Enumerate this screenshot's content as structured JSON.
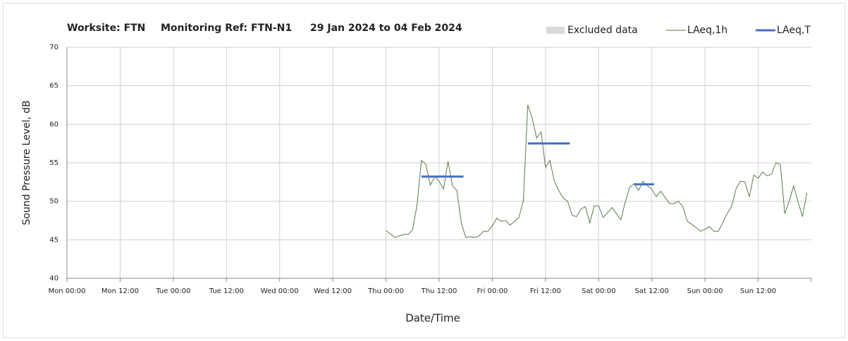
{
  "chart_data": {
    "type": "line",
    "title": [
      "Worksite: FTN",
      "Monitoring Ref: FTN-N1",
      "29 Jan 2024 to 04 Feb 2024"
    ],
    "xlabel": "Date/Time",
    "ylabel": "Sound Pressure Level, dB",
    "xlim": [
      0,
      168
    ],
    "ylim": [
      40,
      70
    ],
    "xticks": [
      {
        "value": 0,
        "label": "Mon 00:00"
      },
      {
        "value": 12,
        "label": "Mon 12:00"
      },
      {
        "value": 24,
        "label": "Tue 00:00"
      },
      {
        "value": 36,
        "label": "Tue 12:00"
      },
      {
        "value": 48,
        "label": "Wed 00:00"
      },
      {
        "value": 60,
        "label": "Wed 12:00"
      },
      {
        "value": 72,
        "label": "Thu 00:00"
      },
      {
        "value": 84,
        "label": "Thu 12:00"
      },
      {
        "value": 96,
        "label": "Fri 00:00"
      },
      {
        "value": 108,
        "label": "Fri 12:00"
      },
      {
        "value": 120,
        "label": "Sat 00:00"
      },
      {
        "value": 132,
        "label": "Sat 12:00"
      },
      {
        "value": 144,
        "label": "Sun 00:00"
      },
      {
        "value": 156,
        "label": "Sun 12:00"
      }
    ],
    "yticks": [
      40,
      45,
      50,
      55,
      60,
      65,
      70
    ],
    "grid": true,
    "legend": "top-right",
    "series": [
      {
        "name": "Excluded data",
        "color": "#d9d9d9",
        "x": [],
        "values": []
      },
      {
        "name": "LAeq,1h",
        "color": "#5a7a4a",
        "x": [
          72,
          74,
          76,
          77,
          78,
          79,
          80,
          81,
          82,
          83,
          84,
          85,
          86,
          87,
          88,
          89,
          90,
          91,
          92,
          93,
          94,
          95,
          96,
          97,
          98,
          99,
          100,
          101,
          102,
          103,
          104,
          105,
          106,
          107,
          108,
          109,
          110,
          111,
          112,
          113,
          114,
          115,
          116,
          117,
          118,
          119,
          120,
          121,
          122,
          123,
          124,
          125,
          126,
          127,
          128,
          129,
          130,
          131,
          132,
          133,
          134,
          135,
          136,
          137,
          138,
          139,
          140,
          141,
          142,
          143,
          144,
          145,
          146,
          147,
          148,
          149,
          150,
          151,
          152,
          153,
          154,
          155,
          156,
          157,
          158,
          159,
          160,
          161,
          162,
          163,
          164,
          165,
          166,
          167
        ],
        "values": [
          46.2,
          45.3,
          45.7,
          45.7,
          46.3,
          49.5,
          55.3,
          54.8,
          52.1,
          53.2,
          52.6,
          51.6,
          55.2,
          52.0,
          51.4,
          47.2,
          45.3,
          45.4,
          45.3,
          45.5,
          46.1,
          46.1,
          46.8,
          47.8,
          47.4,
          47.5,
          46.9,
          47.4,
          47.9,
          50.1,
          62.5,
          60.8,
          58.2,
          59.0,
          54.4,
          55.3,
          52.6,
          51.4,
          50.4,
          50.0,
          48.2,
          48.0,
          49.0,
          49.3,
          47.2,
          49.4,
          49.4,
          47.9,
          48.5,
          49.2,
          48.4,
          47.6,
          49.9,
          51.8,
          52.3,
          51.4,
          52.6,
          52.0,
          51.6,
          50.6,
          51.3,
          50.5,
          49.7,
          49.7,
          50.0,
          49.3,
          47.4,
          47.0,
          46.6,
          46.1,
          46.4,
          46.7,
          46.1,
          46.1,
          47.2,
          48.4,
          49.3,
          51.6,
          52.6,
          52.5,
          50.6,
          53.4,
          53.0,
          53.8,
          53.3,
          53.5,
          55.0,
          54.8,
          48.4,
          50.0,
          52.0,
          49.9,
          48.0,
          51.1
        ]
      },
      {
        "name": "LAeq,T",
        "color": "#4472c4",
        "x": [
          80,
          89.5,
          89.5,
          104,
          113.5,
          113.5,
          128,
          132.5
        ],
        "values": [
          53.2,
          53.2,
          null,
          57.5,
          57.5,
          null,
          52.2,
          52.2
        ]
      }
    ]
  }
}
